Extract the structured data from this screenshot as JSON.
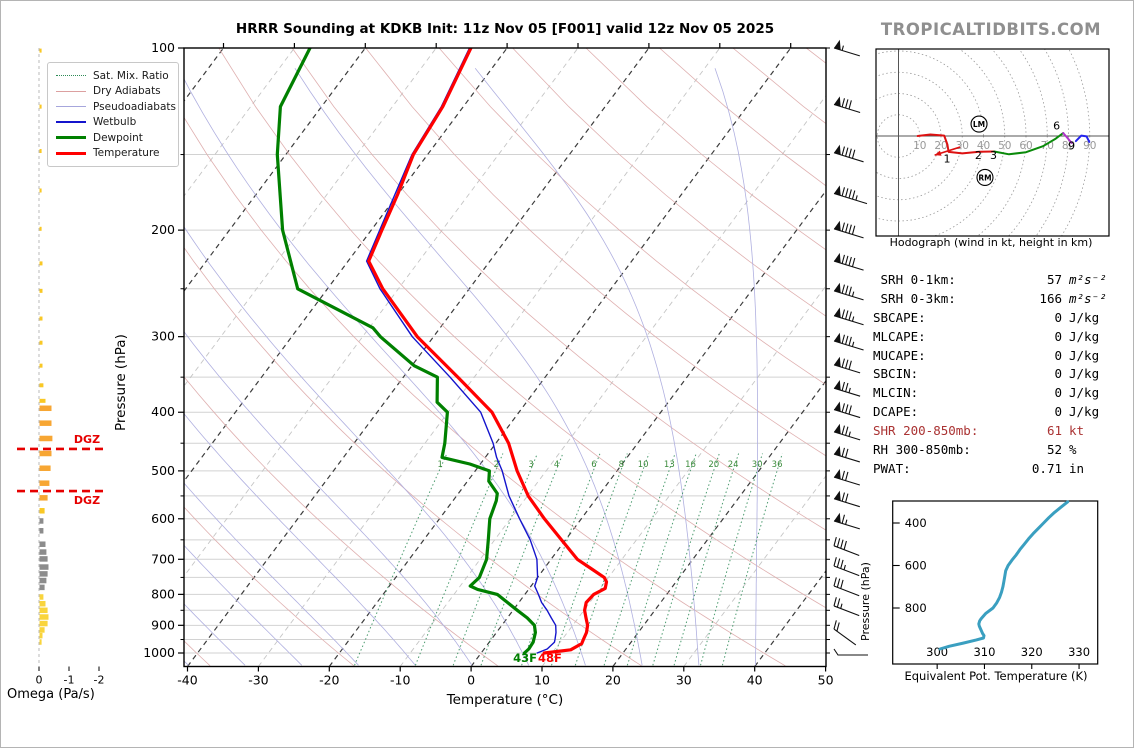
{
  "labels": {
    "title": "HRRR Sounding at KDKB Init: 11z Nov 05 [F001] valid 12z Nov 05 2025",
    "brand": "TROPICALTIDBITS.COM",
    "skewt_xlabel": "Temperature (°C)",
    "skewt_ylabel": "Pressure (hPa)",
    "omega_label": "Omega (Pa/s)",
    "hodo_caption": "Hodograph (wind in kt, height in km)",
    "thetae_xlabel": "Equivalent Pot. Temperature (K)",
    "thetae_ylabel": "Pressure (hPa)",
    "dgz": "DGZ",
    "sfc_temp": "48F",
    "sfc_dewp": "43F",
    "lm": "LM",
    "rm": "RM"
  },
  "legend": {
    "items": [
      {
        "label": "Sat. Mix. Ratio",
        "style": "dotted",
        "width": 1.5,
        "color": "#2e8b57"
      },
      {
        "label": "Dry Adiabats",
        "style": "solid",
        "width": 1.5,
        "color": "#dca0a0"
      },
      {
        "label": "Pseudoadiabats",
        "style": "solid",
        "width": 1.5,
        "color": "#a6a6dc"
      },
      {
        "label": "Wetbulb",
        "style": "solid",
        "width": 2,
        "color": "#1414cc"
      },
      {
        "label": "Dewpoint",
        "style": "solid",
        "width": 3.5,
        "color": "#008000"
      },
      {
        "label": "Temperature",
        "style": "solid",
        "width": 3.5,
        "color": "#ff0000"
      }
    ]
  },
  "colors": {
    "temperature": "#ff0000",
    "dewpoint": "#008000",
    "wetbulb": "#1414cc",
    "dry_adiabat": "#dfb0b0",
    "pseudoadiabat": "#b0b0e0",
    "mix_ratio": "#2e8b57",
    "isotherm_major": "#3c3c3c",
    "isotherm_minor": "#c5c5c5",
    "grid": "#d2d2d2",
    "thetae": "#3a9fc0",
    "dgz": "#e60000",
    "omega_gold": "#f9c825",
    "omega_orange": "#f7a633",
    "omega_gray": "#8c8c8c",
    "omega_yellow": "#f9d43c",
    "hodo_red": "#dd1111",
    "hodo_green": "#0a8a0a",
    "hodo_purple": "#b033cc",
    "hodo_blue": "#2424ee",
    "shr_text": "#aa3333",
    "barb": "#111111",
    "ring": "#9a9a9a"
  },
  "stats": {
    "rows": [
      {
        "label": " SRH 0-1km:",
        "value": "57",
        "unit": "m²s⁻²",
        "unit_italic": true
      },
      {
        "label": " SRH 0-3km:",
        "value": "166",
        "unit": "m²s⁻²",
        "unit_italic": true
      },
      {
        "label": "SBCAPE:",
        "value": "0",
        "unit": "J/kg"
      },
      {
        "label": "MLCAPE:",
        "value": "0",
        "unit": "J/kg"
      },
      {
        "label": "MUCAPE:",
        "value": "0",
        "unit": "J/kg"
      },
      {
        "label": "SBCIN:",
        "value": "0",
        "unit": "J/kg"
      },
      {
        "label": "MLCIN:",
        "value": "0",
        "unit": "J/kg"
      },
      {
        "label": "DCAPE:",
        "value": "0",
        "unit": "J/kg"
      },
      {
        "label": "SHR 200-850mb:",
        "value": "61",
        "unit": "kt",
        "color": "#aa3333"
      },
      {
        "label": "RH 300-850mb:",
        "value": "52",
        "unit": "%"
      },
      {
        "label": "PWAT:",
        "value": "0.71",
        "unit": "in"
      }
    ]
  },
  "chart_data": [
    {
      "id": "skewt",
      "type": "line",
      "title": "HRRR Sounding at KDKB Init: 11z Nov 05 [F001] valid 12z Nov 05 2025",
      "xlabel": "Temperature (°C)",
      "ylabel": "Pressure (hPa)",
      "xlim": [
        -40,
        50
      ],
      "plim": [
        100,
        1050
      ],
      "temp_ticks": [
        -40,
        -30,
        -20,
        -10,
        0,
        10,
        20,
        30,
        40,
        50
      ],
      "pressure_ticks": [
        100,
        200,
        300,
        400,
        500,
        600,
        700,
        800,
        900,
        1000
      ],
      "isotherm_step": 10,
      "grid_step_hpa": 50,
      "mixing_ratio_values": [
        1,
        2,
        3,
        4,
        6,
        8,
        10,
        13,
        16,
        20,
        24,
        30,
        36
      ],
      "surface_temp_label": "48F",
      "surface_dewp_label": "43F",
      "series": [
        {
          "name": "Temperature",
          "units": "degC",
          "points": [
            [
              1000,
              8.9
            ],
            [
              988,
              12.3
            ],
            [
              965,
              13.2
            ],
            [
              950,
              13.0
            ],
            [
              925,
              12.7
            ],
            [
              900,
              12.1
            ],
            [
              875,
              11.1
            ],
            [
              850,
              10.1
            ],
            [
              825,
              9.5
            ],
            [
              800,
              9.7
            ],
            [
              782,
              10.7
            ],
            [
              763,
              10.2
            ],
            [
              750,
              9.4
            ],
            [
              725,
              6.6
            ],
            [
              700,
              3.7
            ],
            [
              650,
              -0.6
            ],
            [
              600,
              -5.2
            ],
            [
              550,
              -9.9
            ],
            [
              500,
              -14.1
            ],
            [
              450,
              -18.2
            ],
            [
              400,
              -23.8
            ],
            [
              350,
              -32.3
            ],
            [
              300,
              -42.3
            ],
            [
              250,
              -52.2
            ],
            [
              225,
              -57.1
            ],
            [
              200,
              -58.5
            ],
            [
              175,
              -60.0
            ],
            [
              150,
              -62.0
            ],
            [
              125,
              -62.9
            ],
            [
              100,
              -65.1
            ]
          ]
        },
        {
          "name": "Dewpoint",
          "units": "degC",
          "points": [
            [
              1000,
              6.1
            ],
            [
              985,
              6.3
            ],
            [
              960,
              6.2
            ],
            [
              950,
              6.0
            ],
            [
              925,
              5.5
            ],
            [
              900,
              4.6
            ],
            [
              875,
              2.8
            ],
            [
              850,
              0.6
            ],
            [
              825,
              -1.6
            ],
            [
              800,
              -3.9
            ],
            [
              785,
              -7.2
            ],
            [
              775,
              -8.6
            ],
            [
              750,
              -8.2
            ],
            [
              700,
              -9.1
            ],
            [
              650,
              -10.9
            ],
            [
              600,
              -12.9
            ],
            [
              560,
              -13.9
            ],
            [
              545,
              -14.5
            ],
            [
              520,
              -17.0
            ],
            [
              500,
              -18.0
            ],
            [
              487,
              -21.5
            ],
            [
              475,
              -26.1
            ],
            [
              450,
              -27.2
            ],
            [
              400,
              -30.1
            ],
            [
              385,
              -32.6
            ],
            [
              350,
              -35.2
            ],
            [
              335,
              -39.7
            ],
            [
              300,
              -47.5
            ],
            [
              290,
              -49.5
            ],
            [
              250,
              -64.2
            ],
            [
              200,
              -72.5
            ],
            [
              150,
              -81.2
            ],
            [
              125,
              -85.8
            ],
            [
              100,
              -87.8
            ]
          ]
        },
        {
          "name": "Wetbulb",
          "units": "degC",
          "points": [
            [
              1000,
              7.9
            ],
            [
              985,
              8.9
            ],
            [
              960,
              9.2
            ],
            [
              950,
              9.0
            ],
            [
              925,
              8.4
            ],
            [
              900,
              7.6
            ],
            [
              875,
              6.2
            ],
            [
              850,
              4.8
            ],
            [
              825,
              3.2
            ],
            [
              800,
              1.9
            ],
            [
              775,
              0.5
            ],
            [
              750,
              0.0
            ],
            [
              700,
              -2.0
            ],
            [
              650,
              -5.0
            ],
            [
              600,
              -8.7
            ],
            [
              550,
              -12.6
            ],
            [
              500,
              -16.2
            ],
            [
              475,
              -18.4
            ],
            [
              450,
              -20.4
            ],
            [
              400,
              -25.4
            ],
            [
              350,
              -33.4
            ],
            [
              300,
              -43.0
            ],
            [
              250,
              -52.6
            ],
            [
              225,
              -57.4
            ],
            [
              200,
              -58.8
            ],
            [
              150,
              -62.2
            ],
            [
              125,
              -63.1
            ],
            [
              100,
              -65.3
            ]
          ]
        }
      ]
    },
    {
      "id": "omega",
      "type": "bar",
      "xlabel": "Omega (Pa/s)",
      "x_ticks": [
        0,
        -1,
        -2
      ],
      "dgz_levels_hpa": [
        460,
        540
      ],
      "bars": [
        [
          101,
          -0.07,
          "gold"
        ],
        [
          125,
          -0.07,
          "gold"
        ],
        [
          148,
          -0.07,
          "gold"
        ],
        [
          172,
          -0.07,
          "gold"
        ],
        [
          199,
          -0.07,
          "gold"
        ],
        [
          227,
          -0.1,
          "gold"
        ],
        [
          252,
          -0.1,
          "gold"
        ],
        [
          280,
          -0.1,
          "gold"
        ],
        [
          307,
          -0.1,
          "gold"
        ],
        [
          335,
          -0.1,
          "gold"
        ],
        [
          361,
          -0.13,
          "gold"
        ],
        [
          383,
          -0.2,
          "gold"
        ],
        [
          394,
          -0.4,
          "orange"
        ],
        [
          417,
          -0.4,
          "orange"
        ],
        [
          442,
          -0.43,
          "orange"
        ],
        [
          468,
          -0.4,
          "orange"
        ],
        [
          495,
          -0.37,
          "orange"
        ],
        [
          524,
          -0.33,
          "orange"
        ],
        [
          554,
          -0.27,
          "orange"
        ],
        [
          582,
          -0.17,
          "gold"
        ],
        [
          605,
          -0.13,
          "gray"
        ],
        [
          628,
          -0.13,
          "gray"
        ],
        [
          661,
          -0.2,
          "gray"
        ],
        [
          681,
          -0.23,
          "gray"
        ],
        [
          699,
          -0.27,
          "gray"
        ],
        [
          721,
          -0.3,
          "gray"
        ],
        [
          740,
          -0.27,
          "gray"
        ],
        [
          759,
          -0.23,
          "gray"
        ],
        [
          779,
          -0.17,
          "gray"
        ],
        [
          808,
          -0.13,
          "yellow"
        ],
        [
          829,
          -0.2,
          "yellow"
        ],
        [
          850,
          -0.27,
          "yellow"
        ],
        [
          872,
          -0.3,
          "yellow"
        ],
        [
          894,
          -0.27,
          "yellow"
        ],
        [
          916,
          -0.17,
          "yellow"
        ],
        [
          936,
          -0.1,
          "yellow"
        ],
        [
          959,
          -0.07,
          "yellow"
        ]
      ]
    },
    {
      "id": "wind_barbs",
      "type": "barbs",
      "units": "kt",
      "levels": [
        [
          100,
          55
        ],
        [
          124,
          80
        ],
        [
          149,
          90
        ],
        [
          174,
          95
        ],
        [
          199,
          90
        ],
        [
          225,
          90
        ],
        [
          252,
          85
        ],
        [
          277,
          85
        ],
        [
          305,
          85
        ],
        [
          334,
          80
        ],
        [
          365,
          75
        ],
        [
          396,
          80
        ],
        [
          431,
          75
        ],
        [
          469,
          70
        ],
        [
          512,
          70
        ],
        [
          556,
          70
        ],
        [
          605,
          65
        ],
        [
          665,
          40
        ],
        [
          718,
          35
        ],
        [
          775,
          30
        ],
        [
          836,
          25
        ],
        [
          913,
          20
        ],
        [
          1000,
          3
        ]
      ]
    },
    {
      "id": "hodograph",
      "type": "line",
      "caption": "Hodograph (wind in kt, height in km)",
      "rings_kt": [
        10,
        20,
        30,
        40,
        50,
        60,
        70,
        80,
        90
      ],
      "segments": [
        {
          "name": "0-3km",
          "color_key": "hodo_red",
          "points": [
            [
              9,
              0
            ],
            [
              15,
              0.7
            ],
            [
              21.5,
              0.2
            ],
            [
              23,
              -4
            ],
            [
              23.6,
              -7.5
            ],
            [
              30,
              -8.2
            ],
            [
              38,
              -7.4
            ],
            [
              45,
              -7.3
            ]
          ]
        },
        {
          "name": "3-6km",
          "color_key": "hodo_green",
          "points": [
            [
              45,
              -7.3
            ],
            [
              52,
              -8.6
            ],
            [
              60,
              -7.6
            ],
            [
              68,
              -4.8
            ],
            [
              74,
              -1.2
            ],
            [
              77.5,
              1.4
            ]
          ]
        },
        {
          "name": "6-9km",
          "color_key": "hodo_purple",
          "points": [
            [
              77.5,
              1.4
            ],
            [
              79.5,
              -0.9
            ],
            [
              81.5,
              -3.3
            ]
          ]
        },
        {
          "name": "9km+",
          "color_key": "hodo_blue",
          "points": [
            [
              83.5,
              -2.4
            ],
            [
              86,
              0.2
            ],
            [
              88.5,
              -0.2
            ],
            [
              89.8,
              -2.8
            ]
          ]
        }
      ],
      "arrow": {
        "from": [
          29,
          -5.2
        ],
        "to": [
          17,
          -9
        ]
      },
      "height_labels": [
        [
          "1",
          22.8,
          -10.6
        ],
        [
          "2",
          37.6,
          -8.9
        ],
        [
          "3",
          44.7,
          -8.9
        ],
        [
          "6",
          74.4,
          4.9
        ],
        [
          "9",
          81.4,
          -4.4
        ]
      ],
      "markers": [
        {
          "label": "LM",
          "u": 37.9,
          "v": 5.6
        },
        {
          "label": "RM",
          "u": 40.7,
          "v": -19.5
        }
      ]
    },
    {
      "id": "thetae",
      "type": "line",
      "xlabel": "Equivalent Pot. Temperature (K)",
      "ylabel": "Pressure (hPa)",
      "x_ticks": [
        300,
        310,
        320,
        330
      ],
      "y_ticks": [
        400,
        600,
        800
      ],
      "points": [
        [
          993,
          300.6
        ],
        [
          980,
          302.5
        ],
        [
          965,
          305.5
        ],
        [
          950,
          308.3
        ],
        [
          941,
          309.8
        ],
        [
          930,
          309.9
        ],
        [
          920,
          309.6
        ],
        [
          900,
          309.2
        ],
        [
          885,
          308.9
        ],
        [
          875,
          308.8
        ],
        [
          860,
          309.0
        ],
        [
          850,
          309.3
        ],
        [
          825,
          310.3
        ],
        [
          800,
          311.8
        ],
        [
          775,
          312.6
        ],
        [
          750,
          313.2
        ],
        [
          725,
          313.6
        ],
        [
          700,
          313.9
        ],
        [
          675,
          314.1
        ],
        [
          650,
          314.3
        ],
        [
          625,
          314.5
        ],
        [
          600,
          315.0
        ],
        [
          575,
          315.8
        ],
        [
          550,
          316.7
        ],
        [
          525,
          317.5
        ],
        [
          500,
          318.4
        ],
        [
          475,
          319.3
        ],
        [
          450,
          320.3
        ],
        [
          425,
          321.4
        ],
        [
          400,
          322.5
        ],
        [
          375,
          323.6
        ],
        [
          350,
          324.8
        ],
        [
          325,
          326.2
        ],
        [
          300,
          327.6
        ]
      ]
    }
  ]
}
